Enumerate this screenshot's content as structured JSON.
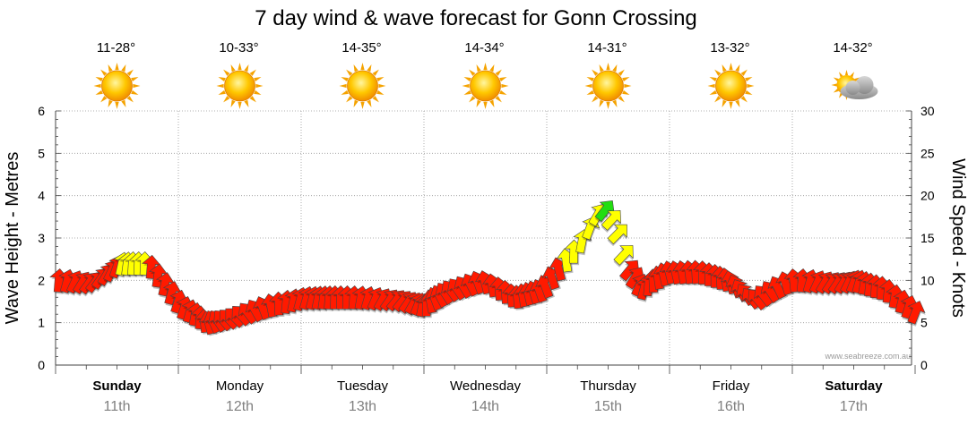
{
  "chart_data": {
    "type": "line",
    "title": "7 day wind & wave forecast for Gonn Crossing",
    "ylabel_left": "Wave Height - Metres",
    "ylabel_right": "Wind Speed - Knots",
    "ylim_left": [
      0,
      6
    ],
    "ylim_right": [
      0,
      30
    ],
    "yticks_left": [
      "0",
      "1",
      "2",
      "3",
      "4",
      "5",
      "6"
    ],
    "yticks_right": [
      "0",
      "5",
      "10",
      "15",
      "20",
      "25",
      "30"
    ],
    "grid": true,
    "watermark": "www.seabreeze.com.au",
    "days": [
      {
        "name": "Sunday",
        "date": "11th",
        "temp": "11-28°",
        "icon": "sun-icon",
        "bold": true
      },
      {
        "name": "Monday",
        "date": "12th",
        "temp": "10-33°",
        "icon": "sun-icon",
        "bold": false
      },
      {
        "name": "Tuesday",
        "date": "13th",
        "temp": "14-35°",
        "icon": "sun-icon",
        "bold": false
      },
      {
        "name": "Wednesday",
        "date": "14th",
        "temp": "14-34°",
        "icon": "sun-icon",
        "bold": false
      },
      {
        "name": "Thursday",
        "date": "15th",
        "temp": "14-31°",
        "icon": "sun-icon",
        "bold": false
      },
      {
        "name": "Friday",
        "date": "16th",
        "temp": "13-32°",
        "icon": "sun-icon",
        "bold": false
      },
      {
        "name": "Saturday",
        "date": "17th",
        "temp": "14-32°",
        "icon": "partly-cloudy-icon",
        "bold": true
      }
    ],
    "colors": {
      "light": "#ff1a00",
      "moderate": "#ffff00",
      "fresh": "#22dd11",
      "arrow_edge": "#444444",
      "grid": "#999999",
      "date_text": "#808080"
    },
    "wind_series": {
      "name": "Wind Speed (knots)",
      "x_days": [
        0,
        0.25,
        0.5,
        0.75,
        1.0,
        1.25,
        1.5,
        1.75,
        2.0,
        2.25,
        2.5,
        2.75,
        3.0,
        3.25,
        3.5,
        3.75,
        4.0,
        4.25,
        4.4,
        4.5,
        4.6,
        4.75,
        5.0,
        5.25,
        5.5,
        5.75,
        6.0,
        6.25,
        6.5,
        6.75,
        7.0
      ],
      "values": [
        10,
        10,
        12,
        12,
        7,
        5,
        6,
        7,
        8,
        8,
        8,
        8,
        7,
        9,
        10,
        8,
        9,
        14,
        19,
        17,
        12,
        9,
        11,
        11,
        10,
        8,
        10,
        10,
        10,
        9,
        6
      ],
      "arrow_spacing_days": 0.05,
      "arrow_direction_deg": 90
    }
  }
}
